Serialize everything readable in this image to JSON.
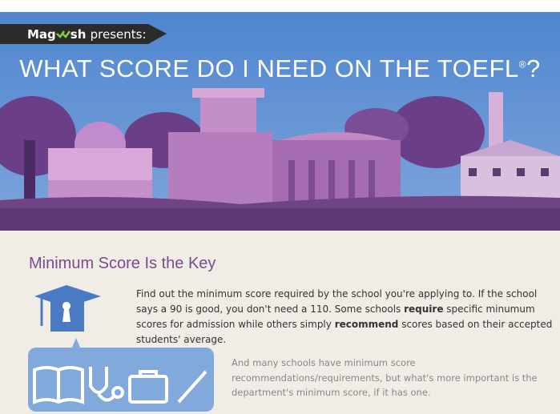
{
  "header": {
    "brand_start": "Mag",
    "brand_end": "sh",
    "presents": "presents:",
    "title": "WHAT SCORE DO I NEED ON THE TOEFL",
    "title_mark": "®",
    "title_end": "?"
  },
  "section": {
    "heading": "Minimum Score Is the Key",
    "paragraph1": [
      "Find out the minimum score required by the school you're applying to. If the school says a 90 is good, you don't need a 110. Some schools ",
      "require",
      " specific minumum scores for admission while others simply ",
      "recommend",
      " scores based on their accepted students' average."
    ],
    "paragraph2": "And many schools have minimum score recommendations/requirements, but what's more important is the department's minimum score, if it has one."
  }
}
